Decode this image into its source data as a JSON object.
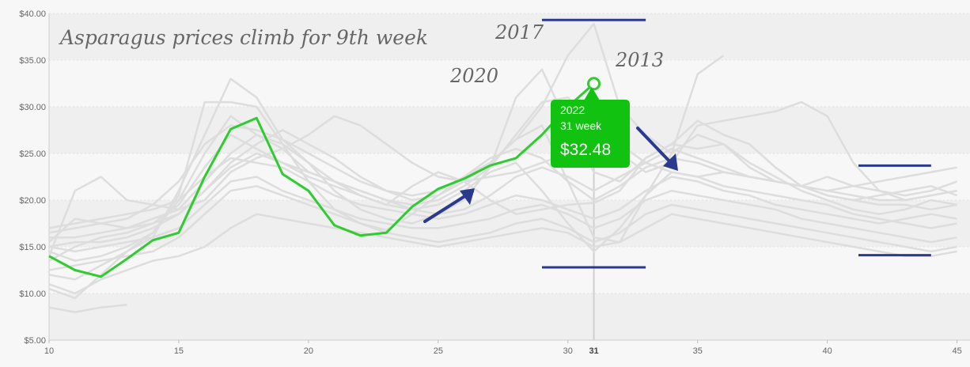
{
  "chart_data": {
    "type": "line",
    "title": "Asparagus prices climb for 9th week",
    "xlim": [
      10,
      45.5
    ],
    "ylim": [
      5,
      40
    ],
    "x_ticks": [
      10,
      15,
      20,
      25,
      30,
      35,
      40,
      45
    ],
    "y_ticks": [
      5,
      10,
      15,
      20,
      25,
      30,
      35,
      40
    ],
    "y_tick_labels": [
      "$5.00",
      "$10.00",
      "$15.00",
      "$20.00",
      "$25.00",
      "$30.00",
      "$35.00",
      "$40.00"
    ],
    "highlight_week": 31,
    "highlight_week_label": "31",
    "annotations": [
      "2017",
      "2020",
      "2013"
    ],
    "grid": true,
    "series": [
      {
        "name": "2022",
        "highlight": true,
        "x": [
          10,
          11,
          12,
          13,
          14,
          15,
          16,
          17,
          18,
          19,
          20,
          21,
          22,
          23,
          24,
          25,
          26,
          27,
          28,
          29,
          30,
          31
        ],
        "values": [
          14.0,
          12.5,
          11.8,
          13.7,
          15.7,
          16.5,
          22.5,
          27.6,
          28.8,
          22.8,
          21.0,
          17.3,
          16.2,
          16.5,
          19.3,
          21.2,
          22.3,
          23.7,
          24.5,
          27.0,
          30.0,
          32.48
        ]
      },
      {
        "name": "",
        "x": [
          10,
          11,
          12,
          13,
          14,
          15,
          16,
          17,
          18,
          19,
          20,
          21,
          22,
          23,
          24,
          25,
          26,
          27,
          28,
          29,
          30,
          31,
          32,
          33,
          34,
          35,
          36
        ],
        "values": [
          10.5,
          9.5,
          12.0,
          14.5,
          16.5,
          20.5,
          30.5,
          30.5,
          30.0,
          26.0,
          22.0,
          19.0,
          17.5,
          16.8,
          18.5,
          20.5,
          22.5,
          24.0,
          26.5,
          30.0,
          35.5,
          38.9,
          30.0,
          27.0,
          25.0,
          33.5,
          35.5
        ]
      },
      {
        "name": "",
        "x": [
          10,
          11,
          12,
          13,
          14,
          15,
          16,
          17,
          18,
          19,
          20,
          21,
          22,
          23,
          24,
          25,
          26,
          27,
          28,
          29,
          30,
          31,
          32,
          33,
          34,
          35,
          36,
          37,
          38,
          39,
          40,
          41,
          42,
          43,
          44,
          45
        ],
        "values": [
          12.0,
          11.5,
          13.0,
          14.5,
          16.0,
          21.0,
          27.0,
          33.0,
          31.0,
          26.5,
          24.0,
          21.0,
          19.0,
          18.0,
          17.5,
          18.5,
          20.0,
          23.5,
          31.0,
          34.0,
          28.0,
          23.0,
          22.0,
          24.5,
          26.0,
          28.5,
          27.0,
          26.0,
          23.5,
          21.5,
          20.5,
          20.0,
          20.5,
          21.0,
          21.5,
          20.5
        ]
      },
      {
        "name": "",
        "x": [
          10,
          11,
          12,
          13,
          14,
          15,
          16,
          17,
          18,
          19,
          20,
          21,
          22,
          23,
          24,
          25,
          26,
          27,
          28,
          29,
          30,
          31,
          32,
          33,
          34,
          35,
          36,
          37,
          38,
          39,
          40,
          41,
          42,
          43,
          44,
          45
        ],
        "values": [
          14.5,
          13.5,
          14.0,
          15.0,
          16.5,
          20.0,
          25.0,
          29.0,
          27.0,
          25.5,
          23.0,
          22.0,
          20.5,
          19.5,
          21.5,
          23.0,
          22.0,
          20.0,
          18.5,
          19.0,
          19.5,
          19.7,
          21.0,
          24.5,
          26.0,
          25.5,
          26.0,
          23.5,
          22.0,
          21.5,
          21.0,
          20.5,
          20.0,
          20.0,
          20.5,
          21.0
        ]
      },
      {
        "name": "",
        "x": [
          10,
          11,
          12,
          13,
          14,
          15,
          16,
          17,
          18,
          19,
          20,
          21,
          22,
          23,
          24,
          25,
          26,
          27,
          28,
          29,
          30,
          31,
          32,
          33,
          34,
          35,
          36,
          37,
          38,
          39,
          40,
          41,
          42,
          43,
          44,
          45
        ],
        "values": [
          16.0,
          16.0,
          16.5,
          17.0,
          17.5,
          18.5,
          21.0,
          24.0,
          26.0,
          27.5,
          26.0,
          24.5,
          22.5,
          21.0,
          20.0,
          20.5,
          22.0,
          24.0,
          26.5,
          28.0,
          22.0,
          16.0,
          15.5,
          20.5,
          25.0,
          27.0,
          26.0,
          24.0,
          22.5,
          21.0,
          20.0,
          19.0,
          18.5,
          19.0,
          20.0,
          19.5
        ]
      },
      {
        "name": "",
        "x": [
          10,
          11,
          12,
          13,
          14,
          15,
          16,
          17,
          18,
          19,
          20,
          21,
          22,
          23,
          24,
          25,
          26,
          27,
          28,
          29,
          30,
          31,
          32,
          33,
          34,
          35,
          36,
          37,
          38,
          39,
          40,
          41,
          42,
          43,
          44,
          45
        ],
        "values": [
          15.5,
          18.0,
          17.5,
          17.0,
          18.0,
          19.0,
          22.0,
          25.0,
          27.0,
          26.0,
          24.0,
          22.0,
          21.0,
          20.0,
          19.0,
          18.5,
          19.0,
          20.5,
          22.5,
          23.5,
          22.5,
          21.0,
          22.5,
          24.0,
          25.5,
          24.5,
          23.5,
          22.5,
          22.0,
          21.5,
          20.5,
          20.0,
          19.5,
          19.5,
          19.0,
          19.5
        ]
      },
      {
        "name": "",
        "x": [
          10,
          11,
          12,
          13,
          14,
          15,
          16,
          17,
          18,
          19,
          20,
          21,
          22,
          23,
          24,
          25,
          26,
          27,
          28,
          29,
          30,
          31,
          32,
          33,
          34,
          35,
          36,
          37,
          38,
          39,
          40,
          41,
          42,
          43,
          44,
          45
        ],
        "values": [
          13.5,
          15.0,
          16.0,
          16.5,
          17.5,
          19.5,
          23.5,
          27.0,
          25.5,
          24.0,
          22.5,
          21.5,
          20.5,
          19.5,
          19.0,
          19.5,
          21.0,
          23.0,
          24.0,
          21.0,
          17.5,
          14.5,
          17.0,
          20.5,
          23.0,
          22.5,
          21.5,
          21.0,
          20.5,
          20.0,
          19.5,
          18.5,
          18.0,
          17.5,
          17.0,
          17.5
        ]
      },
      {
        "name": "",
        "x": [
          10,
          11,
          12,
          13,
          14,
          15,
          16,
          17,
          18,
          19,
          20,
          21,
          22,
          23,
          24,
          25,
          26,
          27,
          28,
          29,
          30,
          31,
          32,
          33,
          34,
          35,
          36,
          37,
          38,
          39,
          40,
          41,
          42,
          43,
          44,
          45
        ],
        "values": [
          17.0,
          17.5,
          18.0,
          18.5,
          19.0,
          20.0,
          22.5,
          24.5,
          24.0,
          23.5,
          22.0,
          20.5,
          19.5,
          19.0,
          18.5,
          18.0,
          18.5,
          19.5,
          20.5,
          20.0,
          19.0,
          18.0,
          19.0,
          21.0,
          22.5,
          22.0,
          21.0,
          20.5,
          19.5,
          19.0,
          18.5,
          18.0,
          17.5,
          18.0,
          18.5,
          18.0
        ]
      },
      {
        "name": "",
        "x": [
          10,
          11,
          12,
          13,
          14,
          15,
          16,
          17,
          18,
          19,
          20,
          21,
          22,
          23,
          24,
          25,
          26,
          27,
          28,
          29,
          30,
          31,
          32,
          33,
          34,
          35,
          36,
          37,
          38,
          39,
          40,
          41,
          42,
          43,
          44,
          45
        ],
        "values": [
          15.0,
          14.5,
          15.0,
          15.5,
          16.0,
          17.0,
          19.5,
          22.0,
          22.5,
          21.0,
          20.0,
          19.0,
          18.0,
          17.5,
          17.0,
          17.0,
          17.5,
          18.0,
          19.0,
          19.5,
          18.5,
          17.0,
          18.0,
          20.0,
          21.0,
          20.5,
          20.0,
          19.5,
          19.0,
          18.0,
          17.5,
          17.0,
          16.5,
          16.0,
          15.5,
          16.0
        ]
      },
      {
        "name": "",
        "x": [
          10,
          11,
          12,
          13,
          14,
          15,
          16,
          17,
          18,
          19,
          20,
          21,
          22,
          23,
          24,
          25,
          26,
          27,
          28,
          29,
          30,
          31,
          32,
          33,
          34,
          35,
          36,
          37,
          38,
          39,
          40,
          41,
          42,
          43,
          44,
          45
        ],
        "values": [
          12.5,
          13.0,
          13.5,
          14.0,
          14.5,
          16.0,
          18.5,
          21.0,
          21.5,
          20.5,
          19.5,
          18.5,
          17.5,
          16.5,
          16.0,
          15.5,
          16.0,
          16.5,
          17.5,
          18.0,
          17.0,
          15.5,
          16.5,
          18.5,
          19.5,
          19.0,
          18.5,
          18.0,
          17.5,
          17.0,
          16.5,
          16.0,
          15.5,
          15.0,
          14.5,
          15.0
        ]
      },
      {
        "name": "",
        "x": [
          10,
          11,
          12,
          13,
          14,
          15,
          16,
          17,
          18,
          19,
          20,
          21,
          22,
          23,
          24,
          25,
          26,
          27,
          28,
          29,
          30,
          31,
          32,
          33,
          34,
          35,
          36,
          37,
          38,
          39,
          40,
          41,
          42,
          43,
          44,
          45
        ],
        "values": [
          16.5,
          17.0,
          17.5,
          18.0,
          19.5,
          22.0,
          26.0,
          28.0,
          27.5,
          26.5,
          25.0,
          23.5,
          22.0,
          21.0,
          20.5,
          21.0,
          22.5,
          24.5,
          25.5,
          24.5,
          22.0,
          20.0,
          21.5,
          23.5,
          24.5,
          24.0,
          23.0,
          22.5,
          22.0,
          21.5,
          21.0,
          21.5,
          22.0,
          22.5,
          23.0,
          23.5
        ]
      },
      {
        "name": "",
        "x": [
          10,
          11,
          12,
          13,
          14,
          15,
          16,
          17,
          18,
          19,
          20,
          21,
          22,
          23,
          24,
          25,
          26,
          27,
          28,
          29,
          30,
          31,
          32,
          33,
          34,
          35,
          36,
          37,
          38,
          39,
          40,
          41,
          42,
          43,
          44,
          45
        ],
        "values": [
          11.0,
          10.0,
          11.5,
          12.5,
          13.5,
          14.0,
          15.0,
          17.0,
          18.5,
          18.0,
          17.5,
          17.0,
          16.5,
          16.0,
          15.5,
          15.0,
          15.5,
          16.0,
          16.5,
          17.0,
          16.5,
          15.0,
          15.5,
          17.0,
          18.5,
          18.0,
          17.5,
          17.0,
          16.5,
          16.0,
          15.5,
          15.0,
          14.5,
          14.0,
          14.0,
          14.5
        ]
      },
      {
        "name": "",
        "x": [
          10,
          11,
          12,
          13,
          14,
          15,
          16,
          17,
          18,
          19,
          20,
          21,
          22,
          23,
          24,
          25,
          26,
          27,
          28,
          29,
          30,
          31,
          32,
          33,
          34,
          35,
          36,
          37,
          38,
          39,
          40,
          41,
          42,
          43,
          44,
          45
        ],
        "values": [
          14.0,
          21.0,
          22.5,
          20.0,
          19.5,
          19.0,
          20.0,
          23.0,
          24.5,
          25.5,
          27.0,
          29.0,
          28.0,
          26.0,
          24.0,
          22.5,
          22.0,
          22.5,
          23.0,
          24.0,
          25.0,
          27.0,
          25.0,
          23.0,
          24.0,
          28.0,
          28.5,
          29.0,
          29.5,
          30.5,
          29.0,
          24.0,
          21.0,
          20.0,
          20.5,
          21.0
        ]
      },
      {
        "name": "",
        "x": [
          10,
          11,
          12,
          13,
          14,
          15,
          16,
          17,
          18,
          19,
          20,
          21,
          22,
          23,
          24,
          25,
          26,
          27,
          28,
          29,
          30,
          31,
          32,
          33,
          34,
          35,
          36,
          37,
          38,
          39,
          40,
          41,
          42,
          43,
          44,
          45
        ],
        "values": [
          15.0,
          15.5,
          15.5,
          16.0,
          17.0,
          18.5,
          21.0,
          23.5,
          25.0,
          24.0,
          23.0,
          22.0,
          21.0,
          20.0,
          19.5,
          20.0,
          21.5,
          23.5,
          27.0,
          30.5,
          31.0,
          28.0,
          26.0,
          24.0,
          23.0,
          22.5,
          23.0,
          22.5,
          22.0,
          21.5,
          22.5,
          21.5,
          21.0,
          20.5,
          21.0,
          22.0
        ]
      },
      {
        "name": "",
        "x": [
          10,
          11,
          12,
          13
        ],
        "values": [
          8.5,
          8.0,
          8.5,
          8.8
        ]
      }
    ]
  }
}
